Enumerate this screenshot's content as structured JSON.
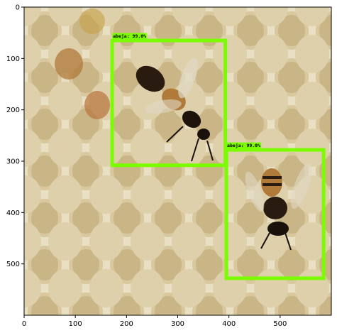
{
  "axes": {
    "x_ticks": [
      "0",
      "100",
      "200",
      "300",
      "400",
      "500"
    ],
    "y_ticks": [
      "0",
      "100",
      "200",
      "300",
      "400",
      "500"
    ],
    "x_range": [
      0,
      600
    ],
    "y_range": [
      0,
      600
    ],
    "y_inverted": true,
    "grid": false
  },
  "image": {
    "subject": "two honeybees on a honeycomb",
    "background_color": "#ede3c6"
  },
  "detections": [
    {
      "label": "abeja: 99.0%",
      "x0": 172,
      "y0": 65,
      "x1": 393,
      "y1": 308,
      "color": "#7cfc00"
    },
    {
      "label": "abeja: 99.0%",
      "x0": 395,
      "y0": 278,
      "x1": 585,
      "y1": 528,
      "color": "#7cfc00"
    }
  ]
}
